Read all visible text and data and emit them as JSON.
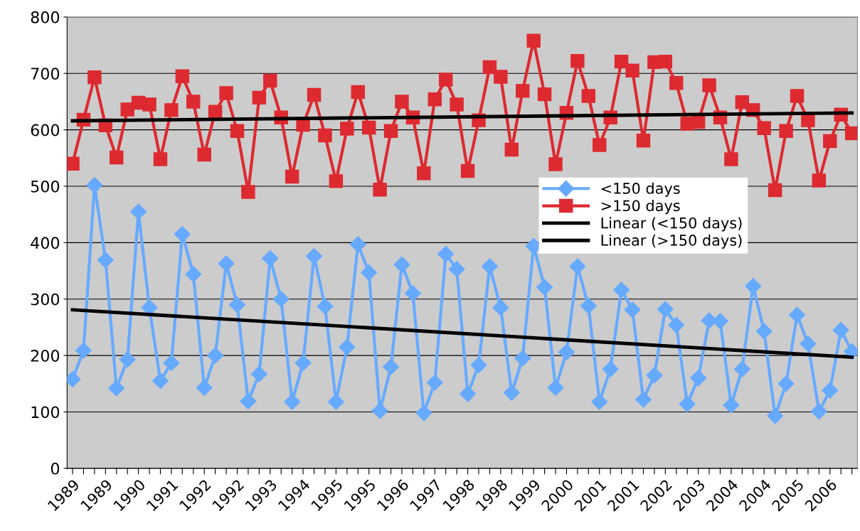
{
  "chart_data": {
    "type": "line",
    "categories": [
      "1989",
      null,
      null,
      "1989",
      null,
      null,
      "1990",
      null,
      null,
      "1991",
      null,
      null,
      "1992",
      null,
      null,
      "1992",
      null,
      null,
      "1993",
      null,
      null,
      "1994",
      null,
      null,
      "1995",
      null,
      null,
      "1995",
      null,
      null,
      "1996",
      null,
      null,
      "1997",
      null,
      null,
      "1998",
      null,
      null,
      "1998",
      null,
      null,
      "1999",
      null,
      null,
      "2000",
      null,
      null,
      "2001",
      null,
      null,
      "2001",
      null,
      null,
      "2002",
      null,
      null,
      "2003",
      null,
      null,
      "2004",
      null,
      null,
      "2004",
      null,
      null,
      "2005",
      null,
      null,
      "2006",
      null,
      null
    ],
    "series": [
      {
        "name": "<150 days",
        "color": "#66aaff",
        "marker": "diamond",
        "values": [
          158,
          209,
          502,
          369,
          142,
          193,
          455,
          285,
          155,
          187,
          415,
          344,
          143,
          200,
          363,
          290,
          119,
          167,
          372,
          300,
          118,
          187,
          376,
          287,
          118,
          215,
          397,
          347,
          102,
          180,
          361,
          310,
          98,
          152,
          380,
          353,
          132,
          183,
          358,
          285,
          134,
          195,
          394,
          321,
          143,
          206,
          358,
          288,
          118,
          176,
          316,
          281,
          122,
          165,
          282,
          254,
          114,
          160,
          262,
          261,
          112,
          176,
          323,
          243,
          93,
          150,
          272,
          221,
          101,
          138,
          245,
          207
        ]
      },
      {
        "name": ">150 days",
        "color": "#dd2a30",
        "marker": "square",
        "values": [
          540,
          618,
          693,
          608,
          551,
          636,
          648,
          645,
          548,
          635,
          695,
          650,
          556,
          632,
          665,
          598,
          490,
          657,
          687,
          622,
          517,
          609,
          662,
          590,
          509,
          602,
          667,
          604,
          494,
          598,
          650,
          622,
          523,
          654,
          689,
          645,
          527,
          617,
          711,
          694,
          565,
          669,
          758,
          663,
          539,
          630,
          722,
          660,
          573,
          622,
          721,
          705,
          581,
          720,
          721,
          683,
          611,
          614,
          679,
          622,
          548,
          649,
          635,
          603,
          493,
          598,
          660,
          617,
          510,
          580,
          627,
          594
        ]
      },
      {
        "name": "Linear (<150 days)",
        "color": "#000000",
        "marker": "none",
        "values": [
          281,
          null,
          null,
          null,
          null,
          null,
          null,
          null,
          null,
          null,
          null,
          null,
          null,
          null,
          null,
          null,
          null,
          null,
          null,
          null,
          null,
          null,
          null,
          null,
          null,
          null,
          null,
          null,
          null,
          null,
          null,
          null,
          null,
          null,
          null,
          null,
          null,
          null,
          null,
          null,
          null,
          null,
          null,
          null,
          null,
          null,
          null,
          null,
          null,
          null,
          null,
          null,
          null,
          null,
          null,
          null,
          null,
          null,
          null,
          null,
          null,
          null,
          null,
          null,
          null,
          null,
          null,
          null,
          null,
          null,
          null,
          197
        ]
      },
      {
        "name": "Linear (>150 days)",
        "color": "#000000",
        "marker": "none",
        "values": [
          616,
          null,
          null,
          null,
          null,
          null,
          null,
          null,
          null,
          null,
          null,
          null,
          null,
          null,
          null,
          null,
          null,
          null,
          null,
          null,
          null,
          null,
          null,
          null,
          null,
          null,
          null,
          null,
          null,
          null,
          null,
          null,
          null,
          null,
          null,
          null,
          null,
          null,
          null,
          null,
          null,
          null,
          null,
          null,
          null,
          null,
          null,
          null,
          null,
          null,
          null,
          null,
          null,
          null,
          null,
          null,
          null,
          null,
          null,
          null,
          null,
          null,
          null,
          null,
          null,
          null,
          null,
          null,
          null,
          null,
          null,
          630
        ]
      }
    ],
    "ylim": [
      0,
      800
    ],
    "yticks": [
      0,
      100,
      200,
      300,
      400,
      500,
      600,
      700,
      800
    ],
    "grid": "y",
    "legend": "right"
  }
}
